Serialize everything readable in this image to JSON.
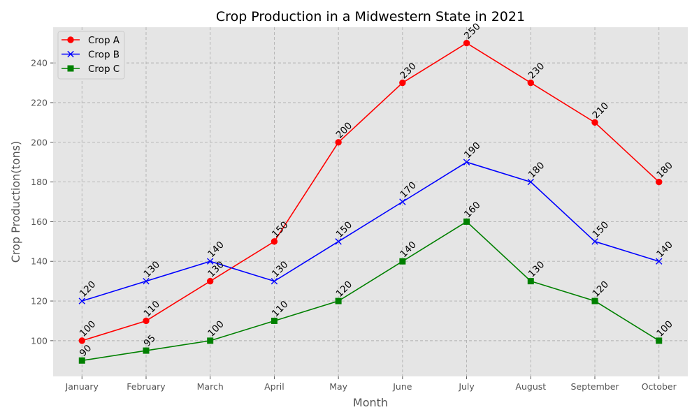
{
  "chart_data": {
    "type": "line",
    "title": "Crop Production in a Midwestern State in 2021",
    "xlabel": "Month",
    "ylabel": "Crop Production(tons)",
    "categories": [
      "January",
      "February",
      "March",
      "April",
      "May",
      "June",
      "July",
      "August",
      "September",
      "October"
    ],
    "series": [
      {
        "name": "Crop A",
        "color": "#ff0000",
        "marker": "circle",
        "values": [
          100,
          110,
          130,
          150,
          200,
          230,
          250,
          230,
          210,
          180
        ]
      },
      {
        "name": "Crop B",
        "color": "#0000ff",
        "marker": "x",
        "values": [
          120,
          130,
          140,
          130,
          150,
          170,
          190,
          180,
          150,
          140
        ]
      },
      {
        "name": "Crop C",
        "color": "#008000",
        "marker": "square",
        "values": [
          90,
          95,
          100,
          110,
          120,
          140,
          160,
          130,
          120,
          100
        ]
      }
    ],
    "ylim": [
      82,
      258
    ],
    "yticks": [
      100,
      120,
      140,
      160,
      180,
      200,
      220,
      240
    ],
    "grid": true,
    "legend": "top-left",
    "data_labels": true,
    "background": "#e5e5e5"
  }
}
